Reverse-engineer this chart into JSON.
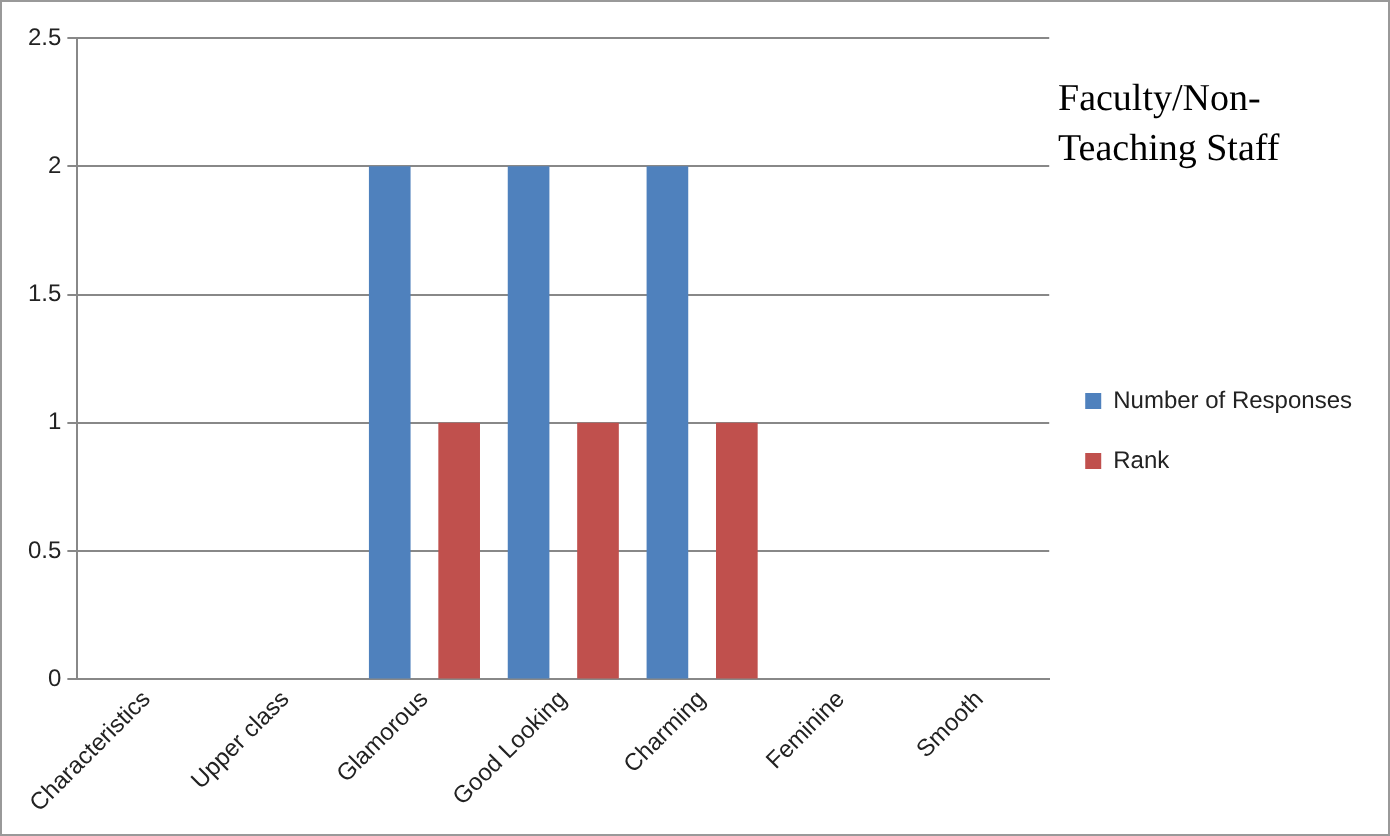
{
  "chart_data": {
    "type": "bar",
    "title": "Faculty/Non-Teaching Staff",
    "categories": [
      "Characteristics",
      "Upper class",
      "Glamorous",
      "Good Looking",
      "Charming",
      "Feminine",
      "Smooth"
    ],
    "series": [
      {
        "name": "Number of Responses",
        "color": "#4f81bd",
        "values": [
          0,
          0,
          2,
          2,
          2,
          0,
          0
        ]
      },
      {
        "name": "Rank",
        "color": "#c0504d",
        "values": [
          0,
          0,
          1,
          1,
          1,
          0,
          0
        ]
      }
    ],
    "ylim": [
      0,
      2.5
    ],
    "yticks": [
      0,
      0.5,
      1,
      1.5,
      2,
      2.5
    ],
    "grid": "y",
    "legend": "right"
  }
}
